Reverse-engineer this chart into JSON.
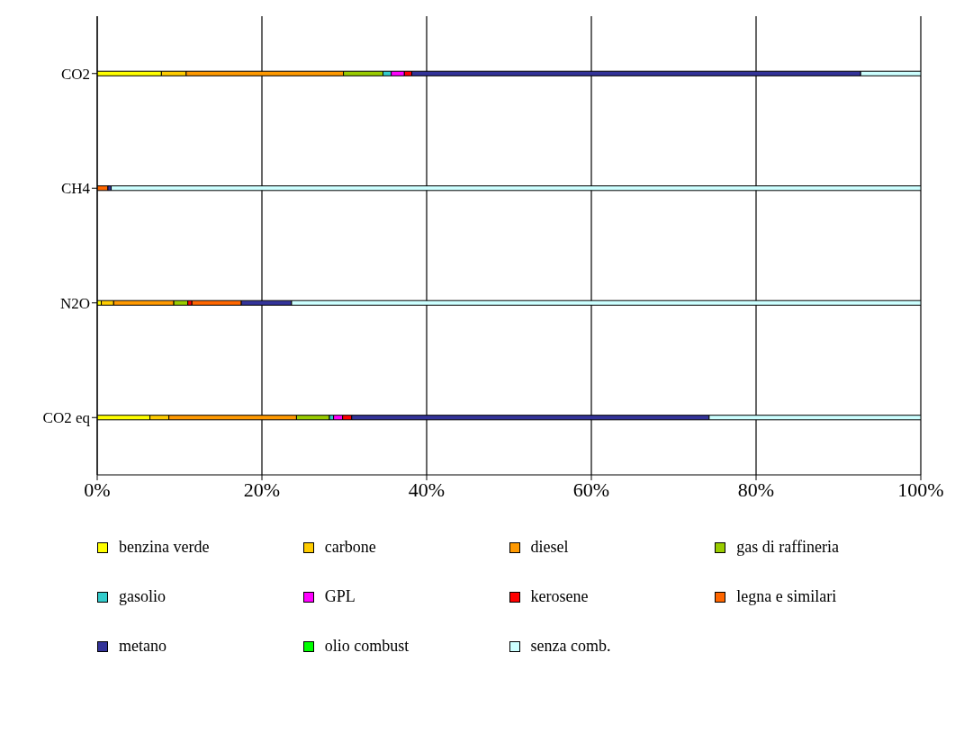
{
  "chart_data": {
    "type": "bar",
    "orientation": "horizontal",
    "stacked": true,
    "categories": [
      "CO2",
      "CH4",
      "N2O",
      "CO2 eq"
    ],
    "series": [
      {
        "name": "benzina verde",
        "color": "#ffff00",
        "values": [
          7.8,
          0,
          0.5,
          6.4
        ]
      },
      {
        "name": "carbone",
        "color": "#ffcc00",
        "values": [
          3.0,
          0,
          1.5,
          2.3
        ]
      },
      {
        "name": "diesel",
        "color": "#ff9900",
        "values": [
          19.1,
          0,
          7.3,
          15.5
        ]
      },
      {
        "name": "gas di raffineria",
        "color": "#99cc00",
        "values": [
          4.8,
          0,
          1.7,
          4.0
        ]
      },
      {
        "name": "gasolio",
        "color": "#33cccc",
        "values": [
          1.0,
          0,
          0,
          0.5
        ]
      },
      {
        "name": "GPL",
        "color": "#ff00ff",
        "values": [
          1.6,
          0,
          0,
          1.1
        ]
      },
      {
        "name": "kerosene",
        "color": "#ff0000",
        "values": [
          0.9,
          0,
          0.5,
          1.1
        ]
      },
      {
        "name": "legna e similari",
        "color": "#ff6600",
        "values": [
          0,
          1.3,
          6.0,
          0
        ]
      },
      {
        "name": "metano",
        "color": "#333399",
        "values": [
          54.5,
          0.4,
          6.1,
          43.4
        ]
      },
      {
        "name": "olio combust",
        "color": "#00ff00",
        "values": [
          0,
          0,
          0,
          0
        ]
      },
      {
        "name": "senza comb.",
        "color": "#ccffff",
        "values": [
          7.3,
          98.3,
          76.4,
          25.7
        ]
      }
    ],
    "xlim": [
      0,
      100
    ],
    "xticks": [
      {
        "value": 0,
        "label": "0%"
      },
      {
        "value": 20,
        "label": "20%"
      },
      {
        "value": 40,
        "label": "40%"
      },
      {
        "value": 60,
        "label": "60%"
      },
      {
        "value": 80,
        "label": "80%"
      },
      {
        "value": 100,
        "label": "100%"
      }
    ],
    "grid": "x",
    "legend": "bottom"
  }
}
